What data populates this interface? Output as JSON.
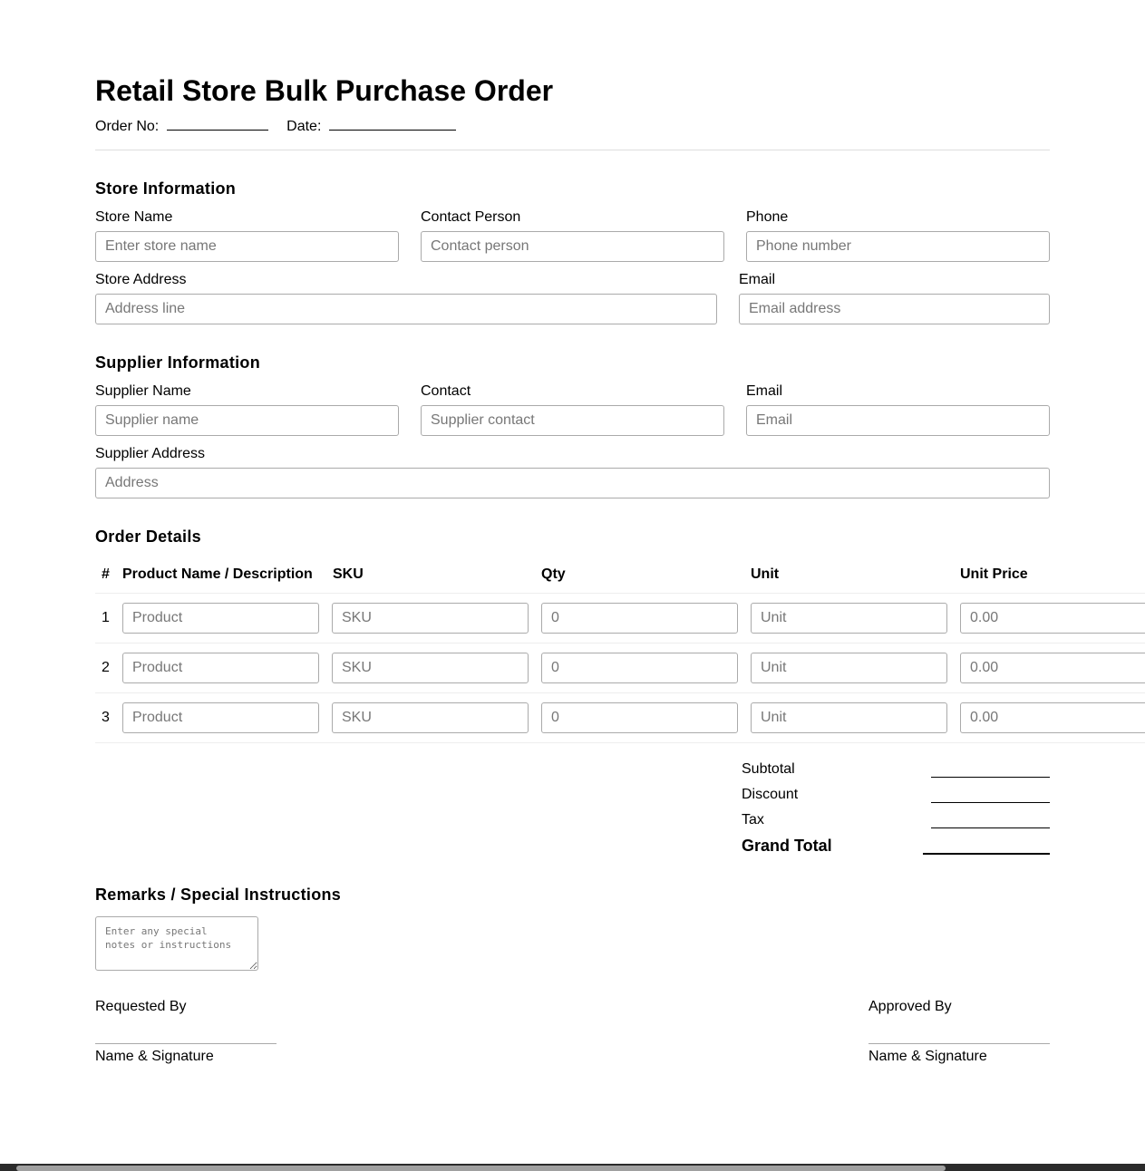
{
  "title": "Retail Store Bulk Purchase Order",
  "meta": {
    "order_no_label": "Order No:",
    "date_label": "Date:"
  },
  "store": {
    "heading": "Store Information",
    "store_name": {
      "label": "Store Name",
      "placeholder": "Enter store name"
    },
    "contact_person": {
      "label": "Contact Person",
      "placeholder": "Contact person"
    },
    "phone": {
      "label": "Phone",
      "placeholder": "Phone number"
    },
    "address": {
      "label": "Store Address",
      "placeholder": "Address line"
    },
    "email": {
      "label": "Email",
      "placeholder": "Email address"
    }
  },
  "supplier": {
    "heading": "Supplier Information",
    "name": {
      "label": "Supplier Name",
      "placeholder": "Supplier name"
    },
    "contact": {
      "label": "Contact",
      "placeholder": "Supplier contact"
    },
    "email": {
      "label": "Email",
      "placeholder": "Email"
    },
    "address": {
      "label": "Supplier Address",
      "placeholder": "Address"
    }
  },
  "order": {
    "heading": "Order Details",
    "columns": [
      "#",
      "Product Name / Description",
      "SKU",
      "Qty",
      "Unit",
      "Unit Price"
    ],
    "rows": [
      {
        "num": "1",
        "product": "Product",
        "sku": "SKU",
        "qty": "0",
        "unit": "Unit",
        "price": "0.00"
      },
      {
        "num": "2",
        "product": "Product",
        "sku": "SKU",
        "qty": "0",
        "unit": "Unit",
        "price": "0.00"
      },
      {
        "num": "3",
        "product": "Product",
        "sku": "SKU",
        "qty": "0",
        "unit": "Unit",
        "price": "0.00"
      }
    ]
  },
  "totals": {
    "subtotal": "Subtotal",
    "discount": "Discount",
    "tax": "Tax",
    "grand_total": "Grand Total"
  },
  "remarks": {
    "heading": "Remarks / Special Instructions",
    "placeholder": "Enter any special\nnotes or instructions"
  },
  "signatures": {
    "requested_by": "Requested By",
    "approved_by": "Approved By",
    "name_signature": "Name & Signature"
  }
}
